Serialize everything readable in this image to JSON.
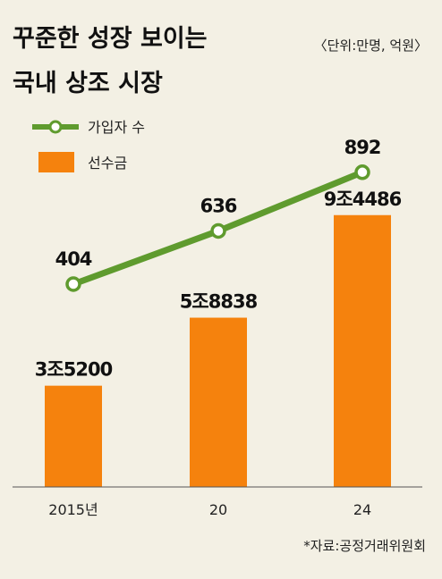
{
  "chart_data": {
    "type": "bar+line",
    "title_lines": [
      "꾸준한 성장 보이는",
      "국내 상조 시장"
    ],
    "unit_note": "〈단위:만명, 억원〉",
    "categories": [
      "2015년",
      "20",
      "24"
    ],
    "series": [
      {
        "name": "가입자 수",
        "type": "line",
        "values": [
          404,
          636,
          892
        ],
        "labels": [
          "404",
          "636",
          "892"
        ],
        "color": "#5f9b2e"
      },
      {
        "name": "선수금",
        "type": "bar",
        "values": [
          35200,
          58838,
          94486
        ],
        "labels": [
          "3조5200",
          "5조8838",
          "9조4486"
        ],
        "color": "#f5820d"
      }
    ],
    "source": "*자료:공정거래위원회"
  }
}
